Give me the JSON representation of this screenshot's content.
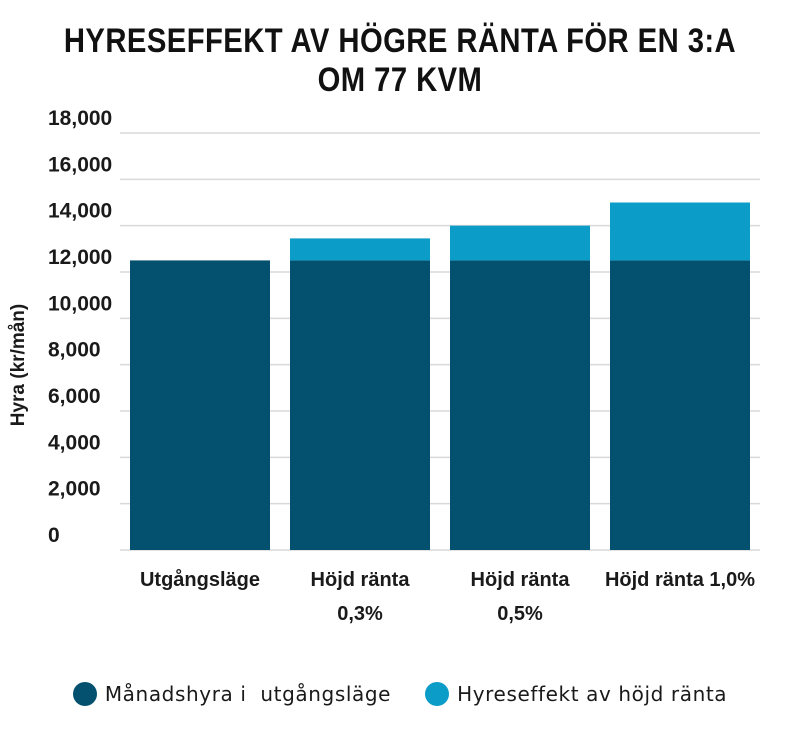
{
  "title": "HYRESEFFEKT AV HÖGRE RÄNTA FÖR EN 3:A OM 77 KVM",
  "chart_data": {
    "type": "bar",
    "stacked": true,
    "ylabel": "Hyra (kr/mån)",
    "ylim": [
      0,
      18000
    ],
    "yticks": [
      "0",
      "2,000",
      "4,000",
      "6,000",
      "8,000",
      "10,000",
      "12,000",
      "14,000",
      "16,000",
      "18,000"
    ],
    "ytick_values": [
      0,
      2000,
      4000,
      6000,
      8000,
      10000,
      12000,
      14000,
      16000,
      18000
    ],
    "grid": true,
    "categories": [
      [
        "Utgångsläge"
      ],
      [
        "Höjd ränta",
        "0,3%"
      ],
      [
        "Höjd ränta",
        "0,5%"
      ],
      [
        "Höjd ränta 1,0%"
      ]
    ],
    "series": [
      {
        "name": "Månadshyra i  utgångsläge",
        "color": "#03506f",
        "values": [
          12500,
          12500,
          12500,
          12500
        ]
      },
      {
        "name": "Hyreseffekt av höjd ränta",
        "color": "#0b9cc7",
        "values": [
          0,
          950,
          1500,
          2500
        ]
      }
    ],
    "legend_position": "bottom"
  }
}
